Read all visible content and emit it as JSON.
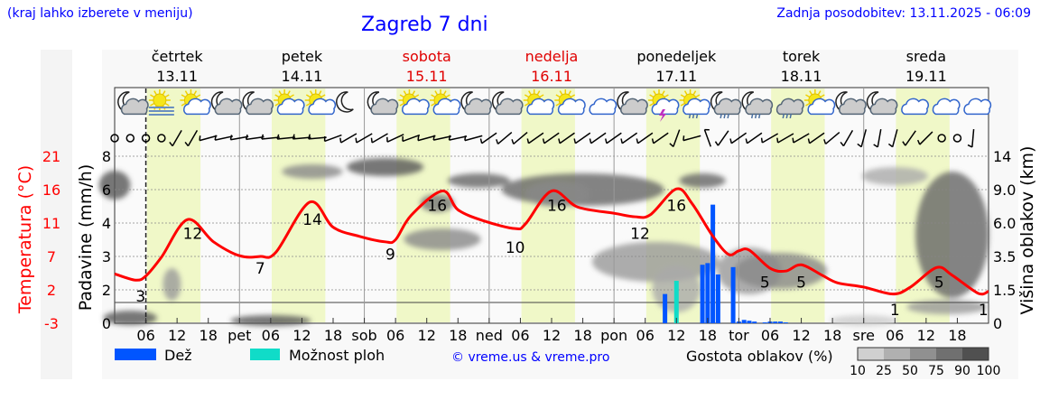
{
  "header": {
    "hint": "(kraj lahko izberete v meniju)",
    "title": "Zagreb 7 dni",
    "updated": "Zadnja posodobitev: 13.11.2025 - 06:09"
  },
  "days": [
    {
      "name": "četrtek",
      "date": "13.11",
      "weekend": false
    },
    {
      "name": "petek",
      "date": "14.11",
      "weekend": false
    },
    {
      "name": "sobota",
      "date": "15.11",
      "weekend": true
    },
    {
      "name": "nedelja",
      "date": "16.11",
      "weekend": true
    },
    {
      "name": "ponedeljek",
      "date": "17.11",
      "weekend": false
    },
    {
      "name": "torek",
      "date": "18.11",
      "weekend": false
    },
    {
      "name": "sreda",
      "date": "19.11",
      "weekend": false
    }
  ],
  "colors": {
    "temperature": "#ff0000",
    "rain": "#0055ff",
    "showers": "#10dcc8",
    "daylight": "#f0f8c8",
    "weekend": "#e00000",
    "link": "#0000ff"
  },
  "weather_icons": [
    "moon-cloud",
    "sun-fog",
    "sun-cloud",
    "moon-cloud",
    "moon-cloud",
    "sun-cloud",
    "sun-cloud",
    "moon",
    "moon-cloud",
    "sun-cloud",
    "sun-cloud",
    "moon-cloud",
    "moon-cloud",
    "sun-cloud",
    "sun-cloud",
    "cloud",
    "moon-cloud",
    "sun-thunder",
    "sun-rain",
    "moon-rain",
    "moon-rain",
    "cloud-rain",
    "sun-cloud",
    "moon-cloud",
    "moon-cloud",
    "cloud",
    "cloud",
    "cloud"
  ],
  "wind_barbs": [
    "calm",
    "calm",
    "calm",
    "calm",
    60,
    60,
    15,
    12,
    10,
    8,
    6,
    6,
    5,
    5,
    20,
    30,
    30,
    30,
    25,
    20,
    15,
    12,
    12,
    15,
    35,
    40,
    40,
    35,
    35,
    35,
    35,
    35,
    35,
    35,
    35,
    35,
    70,
    15,
    -70,
    55,
    35,
    35,
    30,
    30,
    30,
    35,
    40,
    60,
    75,
    80,
    75,
    55,
    45,
    "calm",
    "calm",
    85
  ],
  "chart_data": {
    "type": "line",
    "x_unit": "hours from 13.11 00:00",
    "x_tick_labels": [
      "06",
      "12",
      "18",
      "pet",
      "06",
      "12",
      "18",
      "sob",
      "06",
      "12",
      "18",
      "ned",
      "06",
      "12",
      "18",
      "pon",
      "06",
      "12",
      "18",
      "tor",
      "06",
      "12",
      "18",
      "sre",
      "06",
      "12",
      "18"
    ],
    "left_axis_temperature": {
      "label": "Temperatura (°C)",
      "ticks": [
        21,
        16,
        11,
        7,
        2,
        -3
      ],
      "range": [
        -3,
        21
      ]
    },
    "left_axis_precip": {
      "label": "Padavine (mm/h)",
      "ticks": [
        "0",
        "2",
        "3",
        "4",
        "6",
        "8"
      ]
    },
    "right_axis_cloud_height": {
      "label": "Višina oblakov (km)",
      "ticks": [
        "0",
        "1.5",
        "3.5",
        "6.0",
        "9.0",
        "14"
      ]
    },
    "temperature": [
      [
        0,
        4.1
      ],
      [
        4,
        3.2
      ],
      [
        6,
        3.8
      ],
      [
        9,
        6.5
      ],
      [
        14,
        11.9
      ],
      [
        19,
        8.7
      ],
      [
        24,
        6.7
      ],
      [
        28,
        6.6
      ],
      [
        31,
        7.2
      ],
      [
        37.5,
        14.4
      ],
      [
        42,
        10.8
      ],
      [
        47,
        9.5
      ],
      [
        52,
        8.7
      ],
      [
        54,
        9.0
      ],
      [
        57,
        12.5
      ],
      [
        63,
        16.0
      ],
      [
        66,
        13.3
      ],
      [
        71,
        11.7
      ],
      [
        77,
        10.6
      ],
      [
        79,
        11.3
      ],
      [
        84,
        16.0
      ],
      [
        89,
        13.7
      ],
      [
        96,
        12.8
      ],
      [
        100,
        12.3
      ],
      [
        103,
        12.6
      ],
      [
        108,
        16.3
      ],
      [
        111,
        14.2
      ],
      [
        115,
        9.5
      ],
      [
        118,
        6.9
      ],
      [
        120,
        7.4
      ],
      [
        122,
        7.5
      ],
      [
        126,
        4.9
      ],
      [
        129,
        4.5
      ],
      [
        132,
        5.4
      ],
      [
        136,
        3.9
      ],
      [
        139,
        2.8
      ],
      [
        144,
        2.2
      ],
      [
        149.6,
        1.2
      ],
      [
        153,
        2.2
      ],
      [
        158,
        5.0
      ],
      [
        161,
        3.9
      ],
      [
        166,
        1.3
      ],
      [
        168,
        1.6
      ]
    ],
    "temperature_labels": [
      [
        5,
        3
      ],
      [
        15,
        12
      ],
      [
        28,
        7
      ],
      [
        38,
        14
      ],
      [
        53,
        9
      ],
      [
        62,
        16
      ],
      [
        77,
        10
      ],
      [
        85,
        16
      ],
      [
        101,
        12
      ],
      [
        108,
        16
      ],
      [
        125,
        5
      ],
      [
        132,
        5
      ],
      [
        150,
        1
      ],
      [
        158.5,
        5
      ],
      [
        167,
        1
      ]
    ],
    "rain": [
      [
        105.8,
        1.75
      ],
      [
        113,
        2.75
      ],
      [
        114,
        2.8
      ],
      [
        115,
        5.1
      ],
      [
        116,
        2.46
      ],
      [
        118.9,
        2.68
      ],
      [
        120,
        0.1
      ],
      [
        121,
        0.2
      ],
      [
        122,
        0.15
      ],
      [
        123,
        0.1
      ],
      [
        125,
        0.05
      ],
      [
        126,
        0.1
      ],
      [
        127,
        0.1
      ],
      [
        128,
        0.1
      ],
      [
        129,
        0.05
      ]
    ],
    "showers": [
      [
        108,
        2.27
      ]
    ],
    "daylight_hours": [
      6.2,
      16.5
    ]
  },
  "legend": {
    "rain": "Dež",
    "showers": "Možnost ploh",
    "copyright": "© vreme.us & vreme.pro",
    "cloud_density": "Gostota oblakov (%)",
    "cloud_levels": [
      "10",
      "25",
      "50",
      "75",
      "90",
      "100"
    ]
  }
}
